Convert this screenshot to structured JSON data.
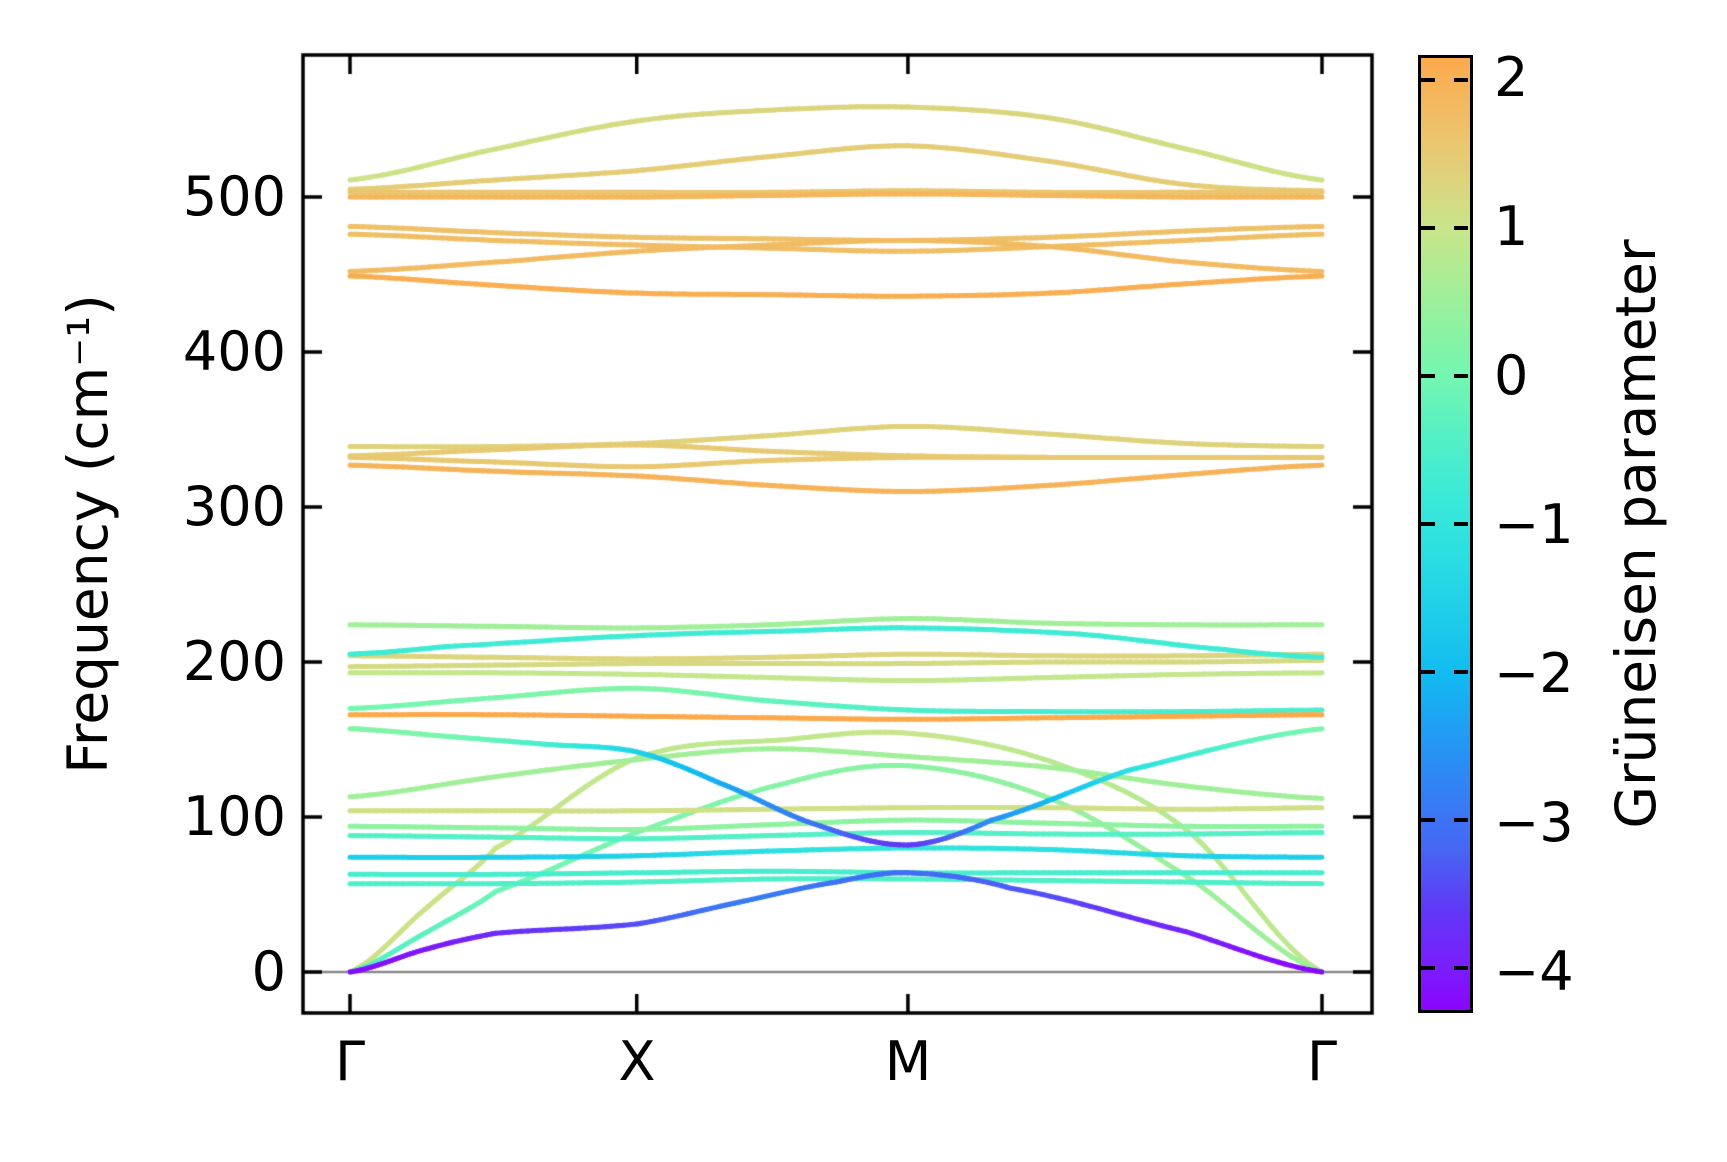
{
  "figure": {
    "background": "#ffffff"
  },
  "axes": {
    "y": {
      "title": "Frequency (cm⁻¹)",
      "tick_labels": [
        "0",
        "100",
        "200",
        "300",
        "400",
        "500"
      ],
      "tick_values": [
        0,
        100,
        200,
        300,
        400,
        500
      ]
    },
    "x": {
      "tick_labels": [
        "Γ",
        "X",
        "M",
        "Γ"
      ],
      "tick_positions": [
        0,
        0.295,
        0.574,
        1.0
      ]
    }
  },
  "colorbar": {
    "label": "Grüneisen parameter",
    "tick_labels": [
      "2",
      "1",
      "0",
      "−1",
      "−2",
      "−3",
      "−4"
    ],
    "tick_values": [
      2,
      1,
      0,
      -1,
      -2,
      -3,
      -4
    ],
    "vmin": -4.28,
    "vmax": 2.15,
    "stops": [
      {
        "v": -4.28,
        "c": "#8A05FE"
      },
      {
        "v": -4.0,
        "c": "#7A1DFB"
      },
      {
        "v": -3.6,
        "c": "#6038F7"
      },
      {
        "v": -3.2,
        "c": "#4766F4"
      },
      {
        "v": -2.8,
        "c": "#3381F4"
      },
      {
        "v": -2.4,
        "c": "#219DF4"
      },
      {
        "v": -2.0,
        "c": "#12BCF0"
      },
      {
        "v": -1.6,
        "c": "#1FCEE9"
      },
      {
        "v": -1.2,
        "c": "#2BDFE2"
      },
      {
        "v": -0.8,
        "c": "#3BEAD6"
      },
      {
        "v": -0.4,
        "c": "#55F0C5"
      },
      {
        "v": 0.0,
        "c": "#74F6B1"
      },
      {
        "v": 0.2,
        "c": "#82F4A7"
      },
      {
        "v": 0.6,
        "c": "#A5EE97"
      },
      {
        "v": 1.0,
        "c": "#C8E58A"
      },
      {
        "v": 1.4,
        "c": "#E2CF79"
      },
      {
        "v": 1.8,
        "c": "#F2BB62"
      },
      {
        "v": 2.15,
        "c": "#FCA94C"
      }
    ]
  },
  "chart_data": {
    "type": "line",
    "title": "",
    "ylabel": "Frequency (cm⁻¹)",
    "ylim": [
      -26,
      592
    ],
    "yticks": [
      0,
      100,
      200,
      300,
      400,
      500
    ],
    "x_path_labels": [
      "Γ",
      "X",
      "M",
      "Γ"
    ],
    "x_path_positions": [
      0,
      0.295,
      0.574,
      1.0
    ],
    "grid_zero_line": 0,
    "color_by": "Grüneisen parameter",
    "color_range": [
      -4.28,
      2.15
    ],
    "legend": "none",
    "bands": [
      {
        "k": [
          0,
          0.08,
          0.15,
          0.295,
          0.45,
          0.574,
          0.72,
          0.86,
          1
        ],
        "freq": [
          0,
          42,
          80,
          138,
          150,
          154,
          136,
          92,
          0
        ],
        "gruneisen": [
          1.1,
          1.05,
          1.0,
          0.9,
          0.9,
          1.0,
          0.85,
          0.8,
          0.9
        ]
      },
      {
        "k": [
          0,
          0.08,
          0.15,
          0.295,
          0.45,
          0.574,
          0.72,
          0.86,
          1
        ],
        "freq": [
          0,
          26,
          52,
          90,
          122,
          133,
          112,
          62,
          0
        ],
        "gruneisen": [
          -0.4,
          -0.3,
          -0.1,
          0.1,
          0.25,
          0.3,
          0.4,
          0.5,
          0.55
        ]
      },
      {
        "k": [
          0,
          0.15,
          0.295,
          0.43,
          0.574,
          0.72,
          0.86,
          1
        ],
        "freq": [
          57,
          57,
          58,
          60,
          60,
          59,
          58,
          57
        ],
        "gruneisen": -0.5
      },
      {
        "k": [
          0,
          0.15,
          0.295,
          0.43,
          0.574,
          0.72,
          0.86,
          1
        ],
        "freq": [
          63,
          63,
          64,
          65,
          64,
          64,
          64,
          64
        ],
        "gruneisen": -0.6
      },
      {
        "k": [
          0,
          0.15,
          0.295,
          0.43,
          0.574,
          0.72,
          0.86,
          1
        ],
        "freq": [
          88,
          87,
          86,
          88,
          90,
          89,
          89,
          90
        ],
        "gruneisen": -0.4
      },
      {
        "k": [
          0,
          0.15,
          0.295,
          0.43,
          0.574,
          0.72,
          0.86,
          1
        ],
        "freq": [
          94,
          93,
          92,
          95,
          98,
          96,
          94,
          94
        ],
        "gruneisen": 0.35
      },
      {
        "k": [
          0,
          0.15,
          0.295,
          0.43,
          0.574,
          0.72,
          0.86,
          1
        ],
        "freq": [
          104,
          104,
          104,
          105,
          106,
          106,
          105,
          106
        ],
        "gruneisen": 1.1
      },
      {
        "k": [
          0,
          0.15,
          0.295,
          0.43,
          0.574,
          0.72,
          0.86,
          1
        ],
        "freq": [
          113,
          126,
          137,
          144,
          139,
          132,
          120,
          112
        ],
        "gruneisen": 0.55
      },
      {
        "k": [
          0,
          0.15,
          0.295,
          0.43,
          0.574,
          0.72,
          0.86,
          1
        ],
        "freq": [
          170,
          177,
          183,
          175,
          169,
          168,
          168,
          169
        ],
        "gruneisen": [
          0.0,
          0.1,
          0.2,
          -0.2,
          -0.5,
          -0.6,
          -0.6,
          -0.5
        ]
      },
      {
        "k": [
          0,
          0.15,
          0.295,
          0.43,
          0.574,
          0.72,
          0.86,
          1
        ],
        "freq": [
          193,
          193,
          192,
          190,
          188,
          190,
          192,
          193
        ],
        "gruneisen": 0.95
      },
      {
        "k": [
          0,
          0.15,
          0.295,
          0.43,
          0.574,
          0.72,
          0.86,
          1
        ],
        "freq": [
          197,
          198,
          199,
          199,
          199,
          200,
          200,
          201
        ],
        "gruneisen": 1.2
      },
      {
        "k": [
          0,
          0.15,
          0.295,
          0.43,
          0.574,
          0.72,
          0.86,
          1
        ],
        "freq": [
          204,
          203,
          202,
          203,
          205,
          204,
          204,
          205
        ],
        "gruneisen": 1.3
      },
      {
        "k": [
          0,
          0.1,
          0.295,
          0.45,
          0.574,
          0.75,
          0.9,
          1
        ],
        "freq": [
          205,
          210,
          217,
          220,
          222,
          218,
          208,
          203
        ],
        "gruneisen": -0.75
      },
      {
        "k": [
          0,
          0.15,
          0.295,
          0.43,
          0.574,
          0.72,
          0.86,
          1
        ],
        "freq": [
          224,
          223,
          222,
          224,
          228,
          225,
          224,
          224
        ],
        "gruneisen": 0.55
      },
      {
        "k": [
          0,
          0.15,
          0.295,
          0.43,
          0.574,
          0.72,
          0.86,
          1
        ],
        "freq": [
          74,
          74,
          75,
          78,
          80,
          79,
          75,
          74
        ],
        "gruneisen": [
          -1.6,
          -1.6,
          -1.5,
          -1.2,
          -1.0,
          -1.2,
          -1.5,
          -1.6
        ]
      },
      {
        "k": [
          0,
          0.15,
          0.295,
          0.43,
          0.574,
          0.72,
          0.86,
          1
        ],
        "freq": [
          166,
          166,
          165,
          164,
          163,
          164,
          165,
          166
        ],
        "gruneisen": 2.2
      },
      {
        "k": [
          0,
          0.1,
          0.2,
          0.295,
          0.38,
          0.48,
          0.574,
          0.66,
          0.8,
          1
        ],
        "freq": [
          157,
          152,
          147,
          142,
          122,
          95,
          82,
          98,
          130,
          157
        ],
        "gruneisen": [
          0.2,
          0.05,
          -0.6,
          -1.5,
          -2.2,
          -3.0,
          -3.6,
          -2.6,
          -1.2,
          0.1
        ]
      },
      {
        "k": [
          0,
          0.08,
          0.15,
          0.295,
          0.4,
          0.5,
          0.574,
          0.68,
          0.86,
          1
        ],
        "freq": [
          0,
          15,
          25,
          31,
          45,
          58,
          64,
          54,
          26,
          0
        ],
        "gruneisen": [
          -4.2,
          -4.05,
          -3.8,
          -3.4,
          -2.9,
          -3.0,
          -3.1,
          -3.3,
          -3.9,
          -4.25
        ]
      },
      {
        "k": [
          0,
          0.15,
          0.295,
          0.43,
          0.574,
          0.72,
          0.86,
          1
        ],
        "freq": [
          339,
          339,
          341,
          346,
          352,
          347,
          341,
          339
        ],
        "gruneisen": 1.35
      },
      {
        "k": [
          0,
          0.15,
          0.295,
          0.43,
          0.574,
          0.72,
          0.86,
          1
        ],
        "freq": [
          333,
          337,
          340,
          336,
          333,
          332,
          332,
          332
        ],
        "gruneisen": 1.5
      },
      {
        "k": [
          0,
          0.15,
          0.295,
          0.43,
          0.574,
          0.72,
          0.86,
          1
        ],
        "freq": [
          332,
          329,
          326,
          330,
          332,
          332,
          332,
          332
        ],
        "gruneisen": 1.55
      },
      {
        "k": [
          0,
          0.15,
          0.295,
          0.43,
          0.574,
          0.72,
          0.86,
          1
        ],
        "freq": [
          327,
          323,
          320,
          314,
          310,
          314,
          321,
          327
        ],
        "gruneisen": 1.95
      },
      {
        "k": [
          0,
          0.15,
          0.295,
          0.43,
          0.574,
          0.72,
          0.86,
          1
        ],
        "freq": [
          511,
          531,
          549,
          556,
          558,
          551,
          531,
          511
        ],
        "gruneisen": [
          1.05,
          1.1,
          1.2,
          1.28,
          1.3,
          1.25,
          1.12,
          1.05
        ]
      },
      {
        "k": [
          0,
          0.15,
          0.295,
          0.43,
          0.574,
          0.72,
          0.86,
          1
        ],
        "freq": [
          505,
          511,
          517,
          526,
          533,
          523,
          508,
          504
        ],
        "gruneisen": 1.45
      },
      {
        "k": [
          0,
          0.15,
          0.295,
          0.43,
          0.574,
          0.72,
          0.86,
          1
        ],
        "freq": [
          503,
          503,
          503,
          503,
          504,
          503,
          503,
          503
        ],
        "gruneisen": 1.6
      },
      {
        "k": [
          0,
          0.15,
          0.295,
          0.43,
          0.574,
          0.72,
          0.86,
          1
        ],
        "freq": [
          500,
          500,
          500,
          501,
          502,
          501,
          500,
          500
        ],
        "gruneisen": 1.9
      },
      {
        "k": [
          0,
          0.15,
          0.295,
          0.43,
          0.574,
          0.72,
          0.86,
          1
        ],
        "freq": [
          481,
          477,
          474,
          473,
          472,
          474,
          478,
          481
        ],
        "gruneisen": 1.7
      },
      {
        "k": [
          0,
          0.15,
          0.295,
          0.43,
          0.574,
          0.72,
          0.86,
          1
        ],
        "freq": [
          476,
          472,
          469,
          467,
          465,
          468,
          472,
          476
        ],
        "gruneisen": 1.75
      },
      {
        "k": [
          0,
          0.15,
          0.295,
          0.43,
          0.574,
          0.72,
          0.86,
          1
        ],
        "freq": [
          452,
          458,
          465,
          469,
          472,
          468,
          458,
          452
        ],
        "gruneisen": 1.8
      },
      {
        "k": [
          0,
          0.15,
          0.295,
          0.43,
          0.574,
          0.72,
          0.86,
          1
        ],
        "freq": [
          449,
          443,
          438,
          437,
          436,
          438,
          444,
          449
        ],
        "gruneisen": 2.05
      }
    ]
  }
}
